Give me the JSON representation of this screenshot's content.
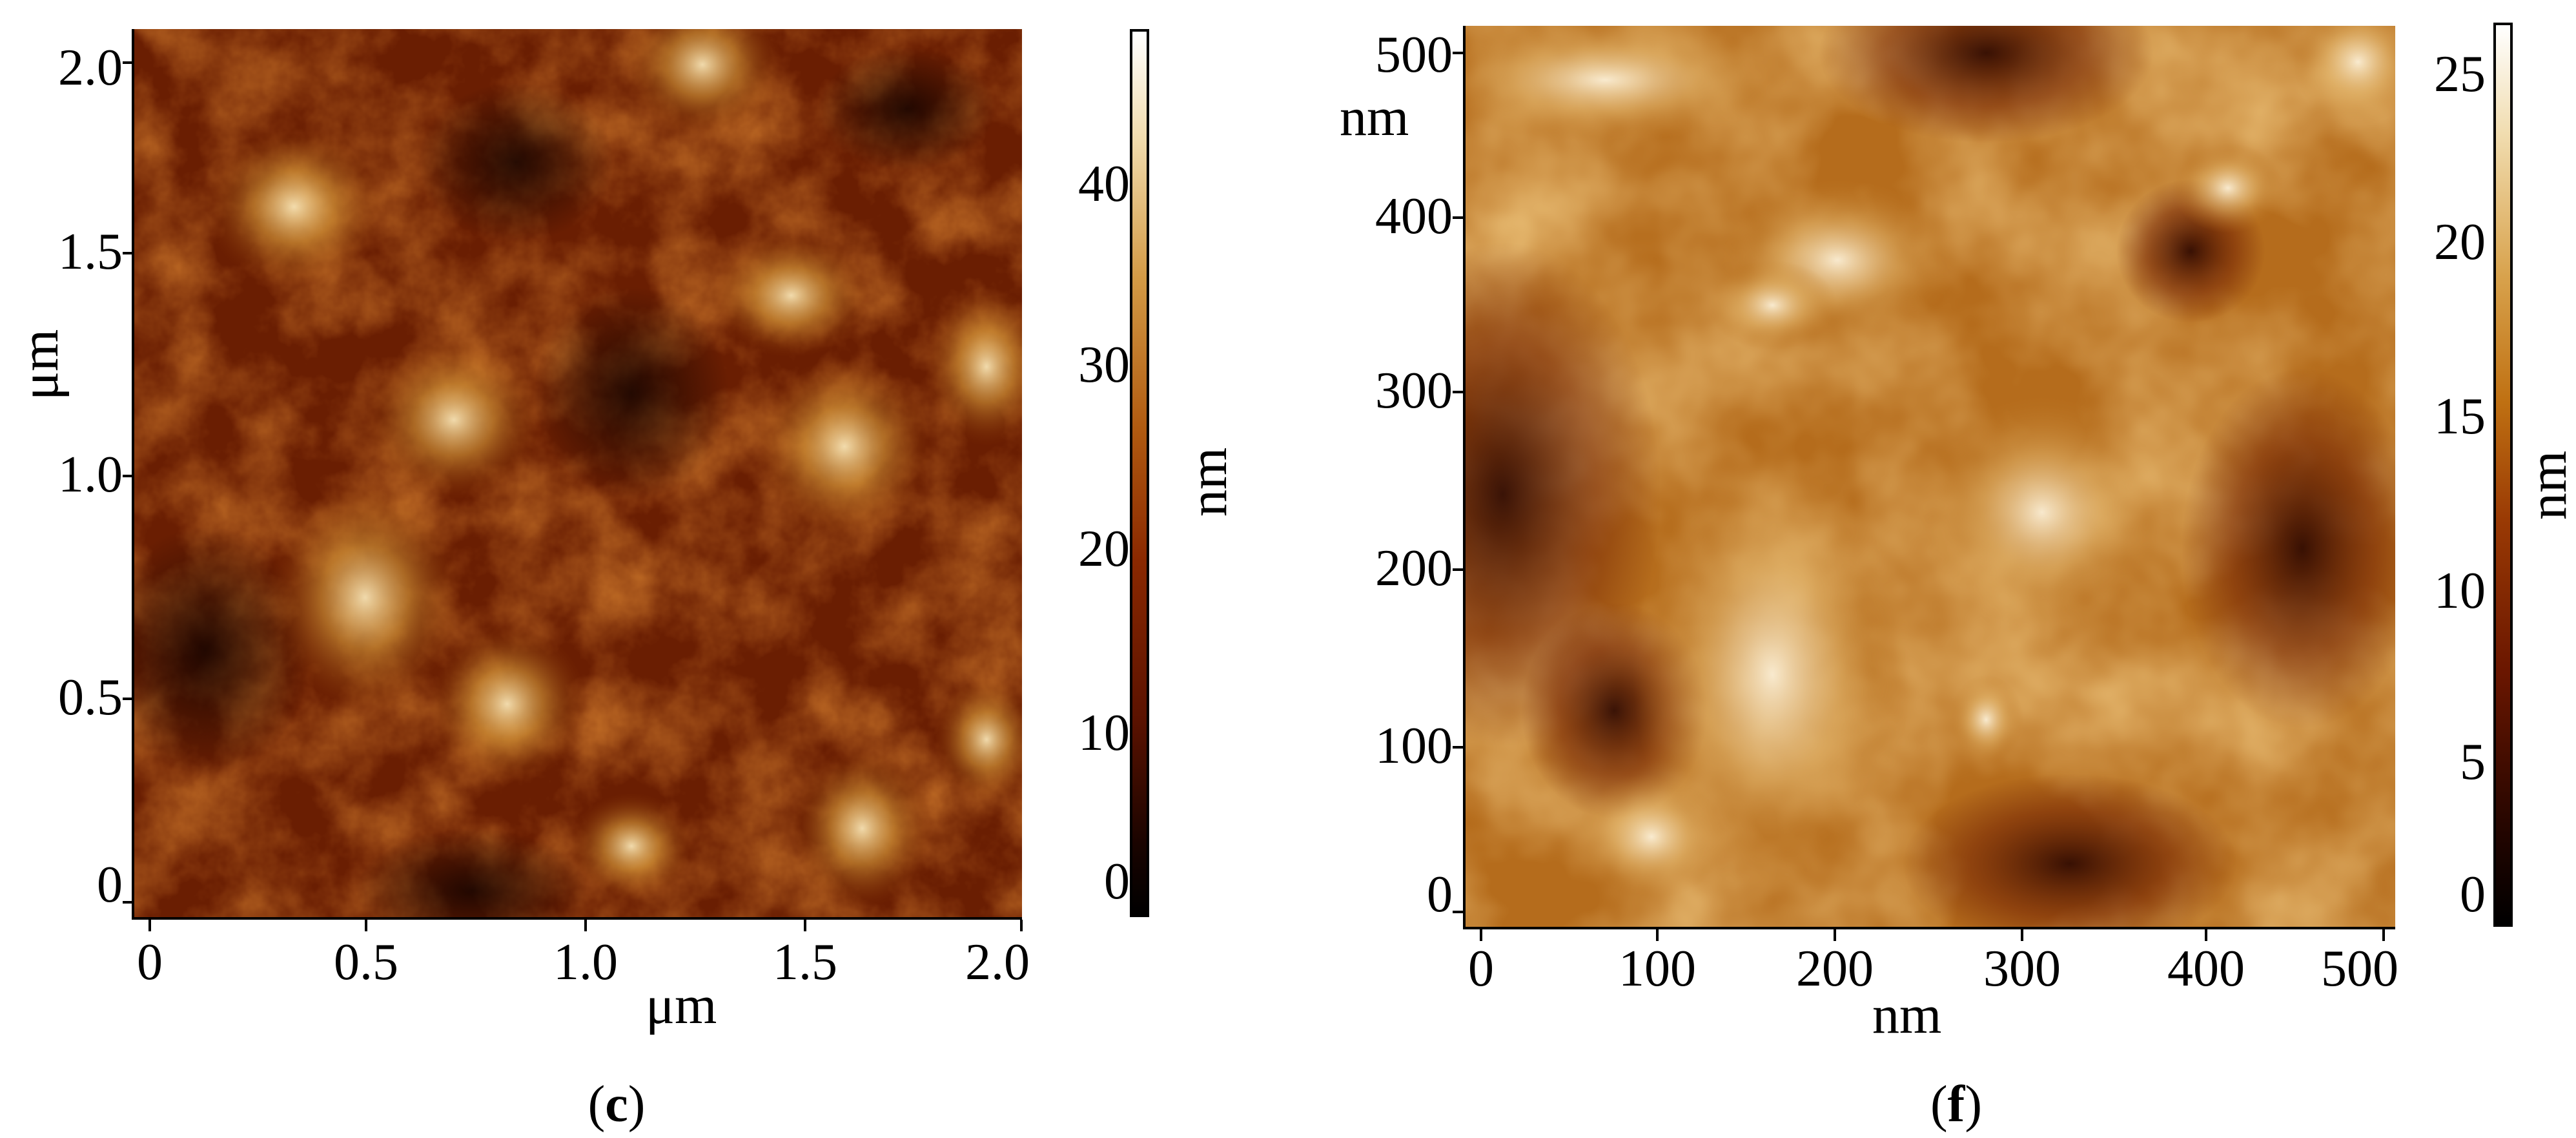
{
  "panels": [
    {
      "id": "c",
      "caption": {
        "open": "(",
        "letter": "c",
        "close": ")"
      },
      "y_title": "μm",
      "x_title": "μm",
      "y_ticks": [
        "2.0",
        "1.5",
        "1.0",
        "0.5",
        "0"
      ],
      "x_ticks": [
        "0",
        "0.5",
        "1.0",
        "1.5",
        "2.0"
      ],
      "colorbar": {
        "unit": "nm",
        "ticks": [
          "40",
          "30",
          "20",
          "10",
          "0"
        ]
      }
    },
    {
      "id": "f",
      "caption": {
        "open": "(",
        "letter": "f",
        "close": ")"
      },
      "y_title": "nm",
      "x_title": "nm",
      "y_ticks": [
        "500",
        "400",
        "300",
        "200",
        "100",
        "0"
      ],
      "x_ticks": [
        "0",
        "100",
        "200",
        "300",
        "400",
        "500"
      ],
      "colorbar": {
        "unit": "nm",
        "ticks": [
          "25",
          "20",
          "15",
          "10",
          "5",
          "0"
        ]
      }
    }
  ],
  "colors": {
    "dark": "#1a0500",
    "mid": "#8a2a00",
    "orange": "#c47a1c",
    "light": "#f6e6c0",
    "white": "#ffffff"
  }
}
